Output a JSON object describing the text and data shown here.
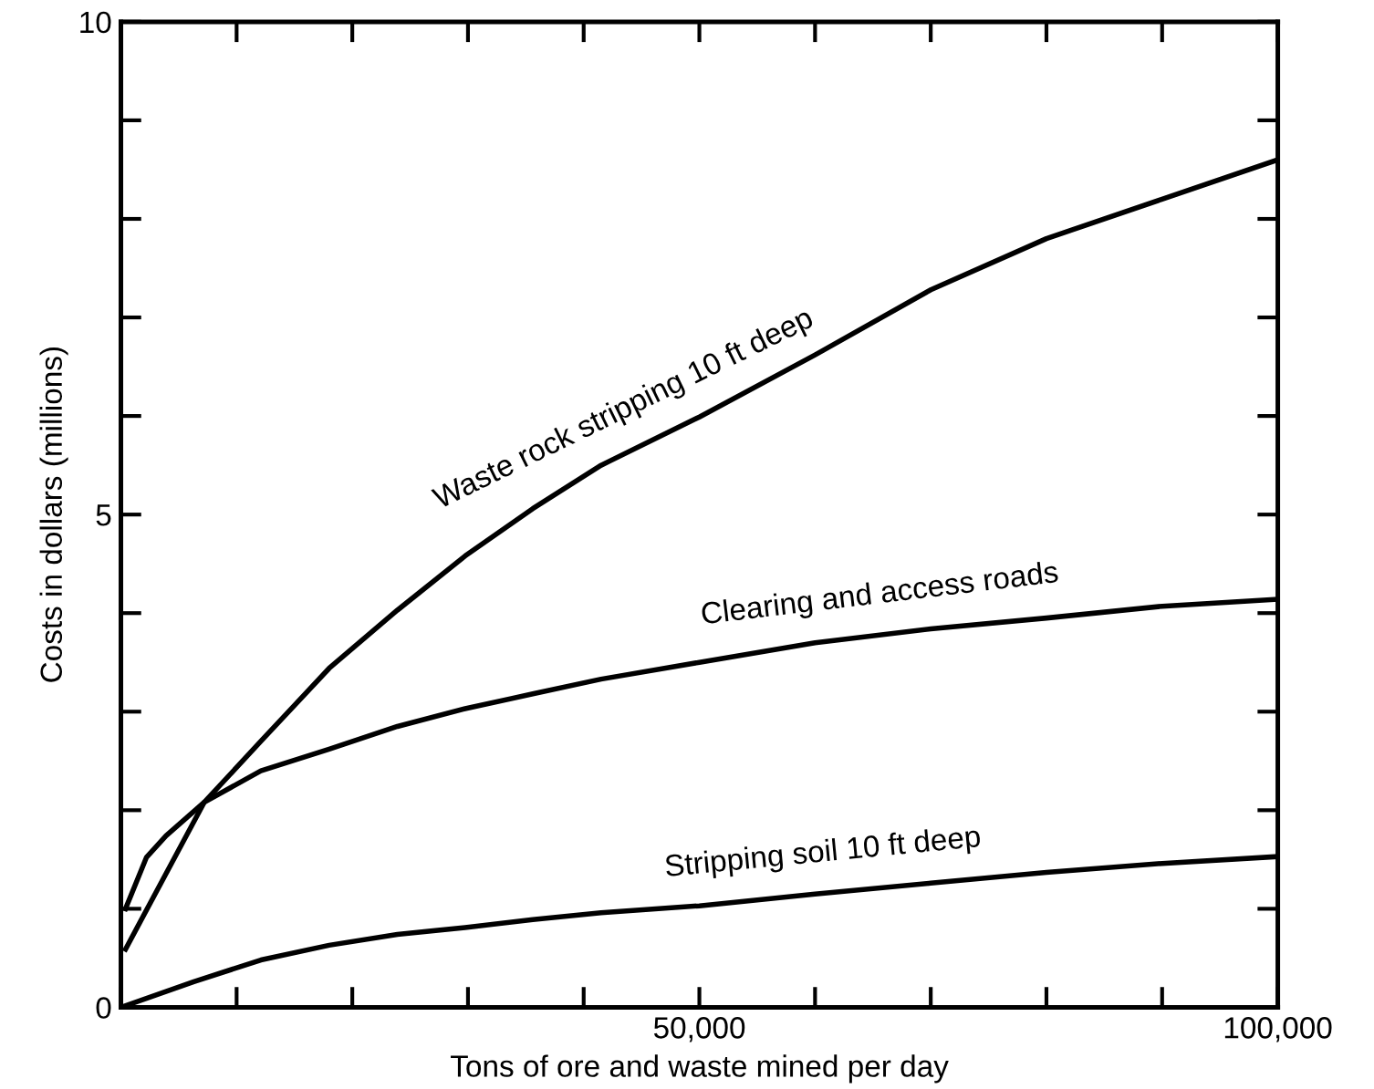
{
  "chart_data": {
    "type": "line",
    "xlabel": "Tons of ore and waste mined per day",
    "ylabel": "Costs in dollars (millions)",
    "xlim": [
      0,
      100000
    ],
    "ylim": [
      0,
      10
    ],
    "xticks": [
      {
        "value": 0,
        "label": null
      },
      {
        "value": 10000,
        "label": null
      },
      {
        "value": 20000,
        "label": null
      },
      {
        "value": 30000,
        "label": null
      },
      {
        "value": 40000,
        "label": null
      },
      {
        "value": 50000,
        "label": "50,000"
      },
      {
        "value": 60000,
        "label": null
      },
      {
        "value": 70000,
        "label": null
      },
      {
        "value": 80000,
        "label": null
      },
      {
        "value": 90000,
        "label": null
      },
      {
        "value": 100000,
        "label": "100,000"
      }
    ],
    "yticks": [
      0,
      {
        "value": 1,
        "label": null
      },
      {
        "value": 2,
        "label": null
      },
      {
        "value": 3,
        "label": null
      },
      {
        "value": 4,
        "label": null
      },
      5,
      {
        "value": 6,
        "label": null
      },
      {
        "value": 7,
        "label": null
      },
      {
        "value": 8,
        "label": null
      },
      {
        "value": 9,
        "label": null
      },
      10
    ],
    "grid": false,
    "legend": false,
    "marker": "none",
    "line_style": "solid",
    "series": [
      {
        "name": "Waste rock stripping 10 ft deep",
        "color": "#000000",
        "x": [
          400,
          7200,
          12100,
          18000,
          23900,
          29750,
          35600,
          41500,
          50000,
          60000,
          70000,
          80000,
          90000,
          100000
        ],
        "values": [
          0.59,
          2.08,
          2.7,
          3.44,
          4.03,
          4.58,
          5.06,
          5.5,
          5.99,
          6.62,
          7.28,
          7.8,
          8.2,
          8.6
        ]
      },
      {
        "name": "Clearing and access roads",
        "color": "#000000",
        "x": [
          400,
          2200,
          3900,
          7200,
          12100,
          18000,
          23900,
          29750,
          35600,
          41500,
          50000,
          60000,
          70000,
          80000,
          90000,
          100000
        ],
        "values": [
          1.0,
          1.52,
          1.74,
          2.08,
          2.4,
          2.62,
          2.85,
          3.03,
          3.18,
          3.33,
          3.5,
          3.7,
          3.84,
          3.95,
          4.07,
          4.14
        ]
      },
      {
        "name": "Stripping soil 10 ft deep",
        "color": "#000000",
        "x": [
          0,
          6300,
          12100,
          18000,
          23900,
          29750,
          35600,
          41500,
          50000,
          60000,
          70000,
          80000,
          90000,
          100000
        ],
        "values": [
          0,
          0.26,
          0.48,
          0.63,
          0.74,
          0.81,
          0.89,
          0.96,
          1.03,
          1.15,
          1.26,
          1.37,
          1.46,
          1.53
        ]
      }
    ]
  }
}
